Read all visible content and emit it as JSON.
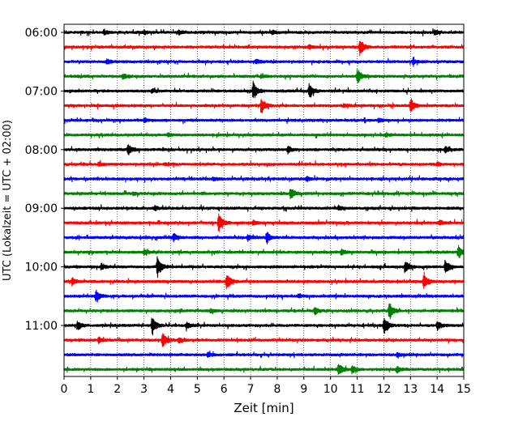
{
  "chart_data": {
    "type": "line",
    "title": "",
    "xlabel": "Zeit  [min]",
    "ylabel": "UTC (Lokalzeit = UTC + 02:00)",
    "xlim": [
      0,
      15
    ],
    "x_ticks": [
      "0",
      "1",
      "2",
      "3",
      "4",
      "5",
      "6",
      "7",
      "8",
      "9",
      "10",
      "11",
      "12",
      "13",
      "14",
      "15"
    ],
    "y_tick_labels": [
      "06:00",
      "07:00",
      "08:00",
      "09:00",
      "10:00",
      "11:00"
    ],
    "trace_duration_min": 15,
    "grid": "vertical dotted lines at each minute",
    "trace_colors": [
      "#000000",
      "#ff0000",
      "#0000ff",
      "#008000"
    ],
    "traces": [
      {
        "start": "06:00",
        "events": [
          [
            1.5,
            0.5
          ],
          [
            3.0,
            0.4
          ],
          [
            4.3,
            0.5
          ],
          [
            7.8,
            0.4
          ],
          [
            13.9,
            0.4
          ]
        ]
      },
      {
        "start": "06:15",
        "events": [
          [
            11.1,
            1.8
          ],
          [
            9.2,
            0.4
          ]
        ]
      },
      {
        "start": "06:30",
        "events": [
          [
            1.6,
            0.6
          ],
          [
            7.2,
            0.4
          ],
          [
            13.1,
            0.5
          ]
        ]
      },
      {
        "start": "06:45",
        "events": [
          [
            2.2,
            0.5
          ],
          [
            7.4,
            0.4
          ],
          [
            11.0,
            1.6
          ]
        ]
      },
      {
        "start": "07:00",
        "events": [
          [
            7.1,
            2.0
          ],
          [
            9.2,
            1.5
          ],
          [
            3.3,
            0.4
          ]
        ]
      },
      {
        "start": "07:15",
        "events": [
          [
            7.4,
            1.8
          ],
          [
            13.0,
            1.4
          ],
          [
            10.5,
            0.3
          ]
        ]
      },
      {
        "start": "07:30",
        "events": [
          [
            3.0,
            0.4
          ],
          [
            11.8,
            0.4
          ]
        ]
      },
      {
        "start": "07:45",
        "events": [
          [
            3.9,
            0.3
          ],
          [
            12.1,
            0.3
          ]
        ]
      },
      {
        "start": "08:00",
        "events": [
          [
            2.4,
            1.2
          ],
          [
            8.4,
            0.7
          ],
          [
            14.3,
            0.6
          ]
        ]
      },
      {
        "start": "08:15",
        "events": [
          [
            1.3,
            0.4
          ],
          [
            3.8,
            0.3
          ],
          [
            14.0,
            0.4
          ]
        ]
      },
      {
        "start": "08:30",
        "events": [
          [
            9.1,
            0.5
          ],
          [
            5.6,
            0.3
          ]
        ]
      },
      {
        "start": "08:45",
        "events": [
          [
            8.5,
            1.2
          ],
          [
            2.6,
            0.3
          ]
        ]
      },
      {
        "start": "09:00",
        "events": [
          [
            10.3,
            0.5
          ],
          [
            3.4,
            0.4
          ]
        ]
      },
      {
        "start": "09:15",
        "events": [
          [
            5.8,
            1.9
          ],
          [
            7.1,
            0.5
          ],
          [
            14.1,
            0.5
          ]
        ]
      },
      {
        "start": "09:30",
        "events": [
          [
            4.1,
            0.8
          ],
          [
            6.9,
            0.6
          ],
          [
            7.6,
            1.3
          ]
        ]
      },
      {
        "start": "09:45",
        "events": [
          [
            14.8,
            1.2
          ],
          [
            3.0,
            0.6
          ],
          [
            10.4,
            0.6
          ]
        ]
      },
      {
        "start": "10:00",
        "events": [
          [
            3.5,
            2.2
          ],
          [
            12.8,
            1.3
          ],
          [
            14.3,
            1.6
          ],
          [
            1.4,
            0.6
          ]
        ]
      },
      {
        "start": "10:15",
        "events": [
          [
            6.1,
            1.8
          ],
          [
            13.5,
            1.6
          ],
          [
            0.3,
            0.8
          ]
        ]
      },
      {
        "start": "10:30",
        "events": [
          [
            1.2,
            1.3
          ],
          [
            8.8,
            0.4
          ]
        ]
      },
      {
        "start": "10:45",
        "events": [
          [
            12.2,
            2.0
          ],
          [
            9.4,
            0.9
          ],
          [
            5.5,
            0.4
          ]
        ]
      },
      {
        "start": "11:00",
        "events": [
          [
            3.3,
            1.8
          ],
          [
            12.0,
            2.0
          ],
          [
            0.5,
            1.0
          ],
          [
            4.6,
            0.8
          ],
          [
            14.0,
            0.9
          ]
        ]
      },
      {
        "start": "11:15",
        "events": [
          [
            3.7,
            1.8
          ],
          [
            1.3,
            0.6
          ],
          [
            4.3,
            0.5
          ]
        ]
      },
      {
        "start": "11:30",
        "events": [
          [
            5.4,
            0.4
          ],
          [
            12.5,
            0.4
          ]
        ]
      },
      {
        "start": "11:45",
        "events": [
          [
            10.3,
            1.4
          ],
          [
            10.8,
            0.9
          ],
          [
            12.5,
            0.7
          ]
        ]
      }
    ]
  }
}
